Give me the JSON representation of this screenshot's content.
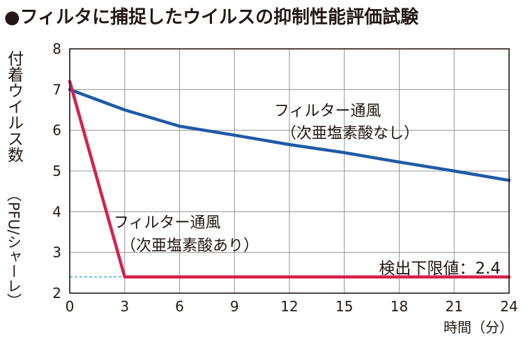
{
  "title": "●フィルタに捕捉したウイルスの抑制性能評価試験",
  "chart_data": {
    "type": "line",
    "ylabel": "付着ウイルス数",
    "ylabel_unit": "（PFU/シャーレ）",
    "xlabel": "時間（分）",
    "xlim": [
      0,
      24
    ],
    "ylim": [
      2,
      8
    ],
    "xticks": [
      "0",
      "3",
      "6",
      "9",
      "12",
      "15",
      "18",
      "21",
      "24"
    ],
    "yticks": [
      "2",
      "3",
      "4",
      "5",
      "6",
      "7",
      "8"
    ],
    "grid": true,
    "series": [
      {
        "name": "フィルター通風",
        "name_line2": "（次亜塩素酸なし）",
        "color": "#1f5aa6",
        "x": [
          0,
          3,
          6,
          9,
          12,
          15,
          18,
          21,
          24
        ],
        "y": [
          7.0,
          6.5,
          6.1,
          5.88,
          5.65,
          5.45,
          5.22,
          5.0,
          4.77
        ]
      },
      {
        "name": "フィルター通風",
        "name_line2": "（次亜塩素酸あり）",
        "color": "#d6204e",
        "x": [
          0,
          3,
          24
        ],
        "y": [
          7.2,
          2.4,
          2.4
        ]
      }
    ],
    "annotations": [
      {
        "text": "検出下限値：2.4",
        "value": 2.4,
        "color": "#2ea7e0"
      }
    ]
  }
}
